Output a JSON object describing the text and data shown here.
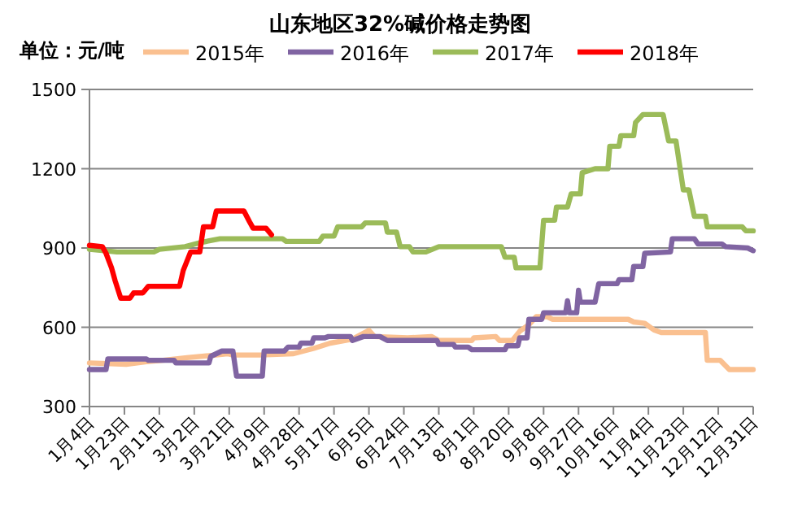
{
  "chart_data": {
    "type": "line",
    "title": "山东地区32%碱价格走势图",
    "ylabel": "单位：元/吨",
    "xlim": [
      "--01-04",
      "--12-31"
    ],
    "xticks": [
      {
        "value": "--01-04",
        "label": "1月4日"
      },
      {
        "value": "--01-23",
        "label": "1月23日"
      },
      {
        "value": "--02-11",
        "label": "2月11日"
      },
      {
        "value": "--03-02",
        "label": "3月2日"
      },
      {
        "value": "--03-21",
        "label": "3月21日"
      },
      {
        "value": "--04-09",
        "label": "4月9日"
      },
      {
        "value": "--04-28",
        "label": "4月28日"
      },
      {
        "value": "--05-17",
        "label": "5月17日"
      },
      {
        "value": "--06-05",
        "label": "6月5日"
      },
      {
        "value": "--06-24",
        "label": "6月24日"
      },
      {
        "value": "--07-13",
        "label": "7月13日"
      },
      {
        "value": "--08-01",
        "label": "8月1日"
      },
      {
        "value": "--08-20",
        "label": "8月20日"
      },
      {
        "value": "--09-08",
        "label": "9月8日"
      },
      {
        "value": "--09-27",
        "label": "9月27日"
      },
      {
        "value": "--10-16",
        "label": "10月16日"
      },
      {
        "value": "--11-04",
        "label": "11月4日"
      },
      {
        "value": "--11-23",
        "label": "11月23日"
      },
      {
        "value": "--12-12",
        "label": "12月12日"
      },
      {
        "value": "--12-31",
        "label": "12月31日"
      }
    ],
    "ylim": [
      300,
      1500
    ],
    "yticks": [
      300,
      600,
      900,
      1200,
      1500
    ],
    "grid": "y",
    "legend": "top",
    "marker": "none",
    "line_style": "solid",
    "series": [
      {
        "name": "2015年",
        "color": "#fac090",
        "x": [
          "--01-04",
          "--01-24",
          "--02-04",
          "--02-13",
          "--02-26",
          "--03-14",
          "--03-20",
          "--03-23",
          "--04-07",
          "--04-25",
          "--05-06",
          "--05-15",
          "--05-27",
          "--06-05",
          "--06-08",
          "--06-26",
          "--07-09",
          "--07-13",
          "--07-31",
          "--08-01",
          "--08-13",
          "--08-15",
          "--08-22",
          "--08-26",
          "--08-31",
          "--09-04",
          "--09-10",
          "--09-13",
          "--10-24",
          "--10-27",
          "--11-02",
          "--11-07",
          "--11-11",
          "--12-05",
          "--12-06",
          "--12-13",
          "--12-18",
          "--12-31"
        ],
        "values": [
          465,
          460,
          470,
          475,
          485,
          495,
          500,
          495,
          495,
          500,
          520,
          540,
          555,
          588,
          565,
          560,
          565,
          550,
          550,
          560,
          565,
          550,
          550,
          585,
          610,
          640,
          640,
          630,
          630,
          620,
          615,
          590,
          580,
          580,
          475,
          475,
          440,
          440
        ]
      },
      {
        "name": "2016年",
        "color": "#8064a2",
        "x": [
          "--01-04",
          "--01-13",
          "--01-14",
          "--02-04",
          "--02-05",
          "--02-19",
          "--02-20",
          "--03-10",
          "--03-11",
          "--03-17",
          "--03-23",
          "--03-25",
          "--04-08",
          "--04-09",
          "--04-20",
          "--04-22",
          "--04-28",
          "--04-29",
          "--05-05",
          "--05-06",
          "--05-12",
          "--05-14",
          "--05-26",
          "--05-27",
          "--06-02",
          "--06-11",
          "--06-15",
          "--07-12",
          "--07-13",
          "--07-21",
          "--07-22",
          "--07-29",
          "--07-31",
          "--08-18",
          "--08-19",
          "--08-25",
          "--08-26",
          "--08-30",
          "--08-31",
          "--09-07",
          "--09-08",
          "--09-20",
          "--09-21",
          "--09-22",
          "--09-26",
          "--09-27",
          "--09-28",
          "--10-06",
          "--10-08",
          "--10-18",
          "--10-19",
          "--10-26",
          "--10-27",
          "--11-01",
          "--11-02",
          "--11-16",
          "--11-17",
          "--11-29",
          "--12-01",
          "--12-14",
          "--12-16",
          "--12-28",
          "--12-31"
        ],
        "values": [
          440,
          440,
          480,
          480,
          475,
          475,
          465,
          465,
          490,
          510,
          510,
          415,
          415,
          510,
          510,
          525,
          525,
          540,
          540,
          560,
          560,
          565,
          565,
          550,
          565,
          565,
          550,
          550,
          535,
          535,
          525,
          525,
          515,
          515,
          530,
          530,
          560,
          560,
          630,
          630,
          655,
          655,
          700,
          655,
          655,
          740,
          695,
          695,
          765,
          765,
          780,
          780,
          830,
          830,
          880,
          885,
          935,
          935,
          915,
          915,
          905,
          900,
          890
        ]
      },
      {
        "name": "2017年",
        "color": "#9bbb59",
        "x": [
          "--01-04",
          "--01-19",
          "--02-08",
          "--02-11",
          "--02-25",
          "--03-05",
          "--03-16",
          "--04-19",
          "--04-21",
          "--05-09",
          "--05-11",
          "--05-17",
          "--05-19",
          "--06-01",
          "--06-03",
          "--06-14",
          "--06-15",
          "--06-20",
          "--06-22",
          "--06-27",
          "--06-29",
          "--07-06",
          "--07-13",
          "--08-16",
          "--08-18",
          "--08-23",
          "--08-24",
          "--09-06",
          "--09-08",
          "--09-14",
          "--09-15",
          "--09-21",
          "--09-23",
          "--09-28",
          "--09-29",
          "--10-06",
          "--10-13",
          "--10-14",
          "--10-19",
          "--10-20",
          "--10-27",
          "--10-28",
          "--11-01",
          "--11-12",
          "--11-15",
          "--11-19",
          "--11-23",
          "--11-26",
          "--11-29",
          "--12-05",
          "--12-06",
          "--12-25",
          "--12-27",
          "--12-31"
        ],
        "values": [
          895,
          885,
          885,
          895,
          905,
          920,
          935,
          935,
          925,
          925,
          945,
          945,
          980,
          980,
          995,
          995,
          960,
          960,
          905,
          905,
          885,
          885,
          905,
          905,
          865,
          865,
          825,
          825,
          1005,
          1005,
          1055,
          1055,
          1105,
          1105,
          1185,
          1200,
          1200,
          1285,
          1285,
          1325,
          1325,
          1375,
          1405,
          1405,
          1305,
          1305,
          1120,
          1120,
          1020,
          1020,
          980,
          980,
          965,
          965
        ]
      },
      {
        "name": "2018年",
        "color": "#ff0000",
        "x": [
          "--01-04",
          "--01-11",
          "--01-13",
          "--01-16",
          "--01-18",
          "--01-21",
          "--01-26",
          "--01-28",
          "--02-02",
          "--02-05",
          "--02-22",
          "--02-24",
          "--02-28",
          "--03-05",
          "--03-07",
          "--03-12",
          "--03-14",
          "--03-29",
          "--04-01",
          "--04-03",
          "--04-10",
          "--04-13"
        ],
        "values": [
          910,
          905,
          880,
          825,
          775,
          710,
          710,
          730,
          730,
          755,
          755,
          815,
          885,
          885,
          980,
          980,
          1040,
          1040,
          1000,
          975,
          975,
          950
        ]
      }
    ]
  }
}
